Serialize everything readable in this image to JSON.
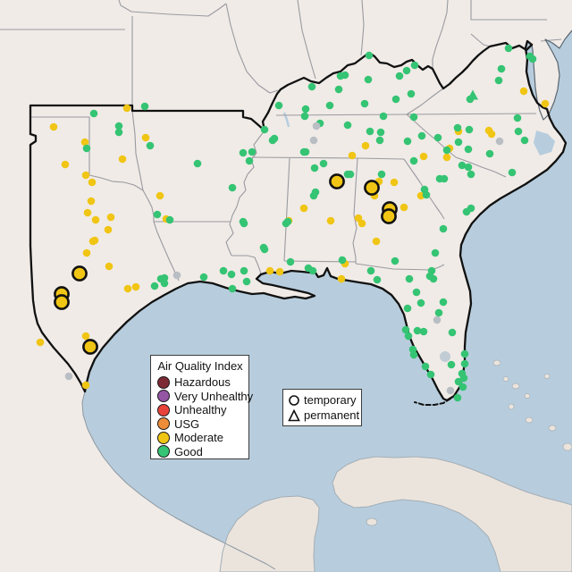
{
  "colors": {
    "water": "#b7cddd",
    "land": "#f0ebe7",
    "foreign_land": "#ebe4dd",
    "state_border": "#9a9aa0",
    "region_border": "#111111",
    "Hazardous": "#7e2a35",
    "Very Unhealthy": "#9455a5",
    "Unhealthy": "#e8433a",
    "USG": "#ed8d3a",
    "Moderate": "#f0c514",
    "Good": "#35c473",
    "NA": "#b9bec4"
  },
  "legend_aqi": {
    "title": "Air Quality Index",
    "items": [
      {
        "label": "Hazardous",
        "color": "#7e2a35"
      },
      {
        "label": "Very Unhealthy",
        "color": "#9455a5"
      },
      {
        "label": "Unhealthy",
        "color": "#e8433a"
      },
      {
        "label": "USG",
        "color": "#ed8d3a"
      },
      {
        "label": "Moderate",
        "color": "#f0c514"
      },
      {
        "label": "Good",
        "color": "#35c473"
      }
    ]
  },
  "legend_shape": {
    "items": [
      {
        "label": "temporary",
        "shape": "circle"
      },
      {
        "label": "permanent",
        "shape": "triangle"
      }
    ]
  },
  "map": {
    "stations_format": [
      "x",
      "y",
      "aqi",
      "marker"
    ],
    "stations": [
      [
        60,
        142,
        "Moderate",
        "dot"
      ],
      [
        95,
        159,
        "Moderate",
        "dot"
      ],
      [
        142,
        121,
        "Moderate",
        "dot"
      ],
      [
        163,
        154,
        "Moderate",
        "dot"
      ],
      [
        137,
        178,
        "Moderate",
        "dot"
      ],
      [
        73,
        184,
        "Moderate",
        "dot"
      ],
      [
        96,
        196,
        "Moderate",
        "dot"
      ],
      [
        103,
        204,
        "Moderate",
        "dot"
      ],
      [
        102,
        225,
        "Moderate",
        "dot"
      ],
      [
        98,
        238,
        "Moderate",
        "dot"
      ],
      [
        107,
        246,
        "Moderate",
        "dot"
      ],
      [
        124,
        243,
        "Moderate",
        "dot"
      ],
      [
        121,
        257,
        "Moderate",
        "dot"
      ],
      [
        106,
        269,
        "Moderate",
        "dot"
      ],
      [
        97,
        283,
        "Moderate",
        "dot"
      ],
      [
        104,
        270,
        "Moderate",
        "dot"
      ],
      [
        122,
        298,
        "Moderate",
        "dot"
      ],
      [
        143,
        323,
        "Moderate",
        "dot"
      ],
      [
        152,
        321,
        "Moderate",
        "dot"
      ],
      [
        45,
        383,
        "Moderate",
        "dot"
      ],
      [
        96,
        376,
        "Moderate",
        "dot"
      ],
      [
        96,
        431,
        "Moderate",
        "dot"
      ],
      [
        179,
        219,
        "Moderate",
        "dot"
      ],
      [
        186,
        245,
        "Moderate",
        "dot"
      ],
      [
        302,
        303,
        "Moderate",
        "dot"
      ],
      [
        313,
        304,
        "Moderate",
        "dot"
      ],
      [
        386,
        295,
        "Moderate",
        "dot"
      ],
      [
        382,
        312,
        "Moderate",
        "dot"
      ],
      [
        323,
        247,
        "Moderate",
        "dot"
      ],
      [
        370,
        247,
        "Moderate",
        "dot"
      ],
      [
        401,
        244,
        "Moderate",
        "dot"
      ],
      [
        405,
        250,
        "Moderate",
        "dot"
      ],
      [
        340,
        233,
        "Moderate",
        "dot"
      ],
      [
        394,
        174,
        "Moderate",
        "dot"
      ],
      [
        409,
        163,
        "Moderate",
        "dot"
      ],
      [
        424,
        203,
        "Moderate",
        "dot"
      ],
      [
        441,
        204,
        "Moderate",
        "dot"
      ],
      [
        419,
        219,
        "Moderate",
        "dot"
      ],
      [
        474,
        175,
        "Moderate",
        "dot"
      ],
      [
        452,
        232,
        "Moderate",
        "dot"
      ],
      [
        421,
        270,
        "Moderate",
        "dot"
      ],
      [
        471,
        219,
        "Moderate",
        "dot"
      ],
      [
        586,
        102,
        "Moderate",
        "dot"
      ],
      [
        610,
        116,
        "Moderate",
        "dot"
      ],
      [
        513,
        147,
        "Moderate",
        "dot"
      ],
      [
        503,
        166,
        "Moderate",
        "dot"
      ],
      [
        500,
        176,
        "Moderate",
        "dot"
      ],
      [
        547,
        146,
        "Moderate",
        "dot"
      ],
      [
        550,
        150,
        "Moderate",
        "dot"
      ],
      [
        105,
        127,
        "Good",
        "dot"
      ],
      [
        162,
        119,
        "Good",
        "dot"
      ],
      [
        133,
        141,
        "Good",
        "dot"
      ],
      [
        133,
        148,
        "Good",
        "dot"
      ],
      [
        97,
        166,
        "Good",
        "dot"
      ],
      [
        168,
        163,
        "Good",
        "dot"
      ],
      [
        173,
        320,
        "Good",
        "dot"
      ],
      [
        184,
        311,
        "Good",
        "dot"
      ],
      [
        184,
        317,
        "Good",
        "dot"
      ],
      [
        221,
        183,
        "Good",
        "dot"
      ],
      [
        260,
        210,
        "Good",
        "dot"
      ],
      [
        176,
        240,
        "Good",
        "dot"
      ],
      [
        272,
        171,
        "Good",
        "dot"
      ],
      [
        282,
        170,
        "Good",
        "dot"
      ],
      [
        279,
        180,
        "Good",
        "dot"
      ],
      [
        296,
        145,
        "Good",
        "dot"
      ],
      [
        307,
        155,
        "Good",
        "dot"
      ],
      [
        228,
        310,
        "Good",
        "dot"
      ],
      [
        250,
        303,
        "Good",
        "dot"
      ],
      [
        259,
        307,
        "Good",
        "dot"
      ],
      [
        273,
        303,
        "Good",
        "dot"
      ],
      [
        276,
        315,
        "Good",
        "dot"
      ],
      [
        260,
        323,
        "Good",
        "dot"
      ],
      [
        190,
        246,
        "Good",
        "dot"
      ],
      [
        273,
        250,
        "Good",
        "dot"
      ],
      [
        180,
        312,
        "Good",
        "dot"
      ],
      [
        295,
        277,
        "Good",
        "dot"
      ],
      [
        272,
        248,
        "Good",
        "dot"
      ],
      [
        296,
        279,
        "Good",
        "dot"
      ],
      [
        325,
        293,
        "Good",
        "dot"
      ],
      [
        320,
        250,
        "Good",
        "dot"
      ],
      [
        340,
        170,
        "Good",
        "dot"
      ],
      [
        345,
        300,
        "Good",
        "dot"
      ],
      [
        350,
        303,
        "Good",
        "dot"
      ],
      [
        413,
        62,
        "Good",
        "dot"
      ],
      [
        381,
        85,
        "Good",
        "dot"
      ],
      [
        386,
        84,
        "Good",
        "dot"
      ],
      [
        379,
        100,
        "Good",
        "dot"
      ],
      [
        349,
        97,
        "Good",
        "dot"
      ],
      [
        412,
        89,
        "Good",
        "dot"
      ],
      [
        447,
        85,
        "Good",
        "dot"
      ],
      [
        455,
        79,
        "Good",
        "dot"
      ],
      [
        464,
        73,
        "Good",
        "dot"
      ],
      [
        312,
        118,
        "Good",
        "dot"
      ],
      [
        342,
        122,
        "Good",
        "dot"
      ],
      [
        341,
        130,
        "Good",
        "dot"
      ],
      [
        369,
        118,
        "Good",
        "dot"
      ],
      [
        408,
        116,
        "Good",
        "dot"
      ],
      [
        443,
        111,
        "Good",
        "dot"
      ],
      [
        460,
        105,
        "Good",
        "dot"
      ],
      [
        429,
        130,
        "Good",
        "dot"
      ],
      [
        463,
        131,
        "Good",
        "dot"
      ],
      [
        305,
        157,
        "Good",
        "dot"
      ],
      [
        358,
        138,
        "Good",
        "dot"
      ],
      [
        389,
        140,
        "Good",
        "dot"
      ],
      [
        414,
        147,
        "Good",
        "dot"
      ],
      [
        426,
        148,
        "Good",
        "dot"
      ],
      [
        425,
        157,
        "Good",
        "dot"
      ],
      [
        456,
        158,
        "Good",
        "dot"
      ],
      [
        472,
        152,
        "Good",
        "dot"
      ],
      [
        342,
        170,
        "Good",
        "dot"
      ],
      [
        362,
        183,
        "Good",
        "dot"
      ],
      [
        352,
        188,
        "Good",
        "dot"
      ],
      [
        351,
        219,
        "Good",
        "dot"
      ],
      [
        353,
        215,
        "Good",
        "dot"
      ],
      [
        322,
        248,
        "Good",
        "dot"
      ],
      [
        389,
        195,
        "Good",
        "dot"
      ],
      [
        383,
        291,
        "Good",
        "dot"
      ],
      [
        427,
        195,
        "Good",
        "dot"
      ],
      [
        392,
        195,
        "Good",
        "dot"
      ],
      [
        463,
        180,
        "Good",
        "dot"
      ],
      [
        475,
        212,
        "Good",
        "dot"
      ],
      [
        477,
        218,
        "Good",
        "dot"
      ],
      [
        492,
        200,
        "Good",
        "dot"
      ],
      [
        497,
        200,
        "Good",
        "dot"
      ],
      [
        496,
        256,
        "Good",
        "dot"
      ],
      [
        487,
        283,
        "Good",
        "dot"
      ],
      [
        442,
        292,
        "Good",
        "dot"
      ],
      [
        517,
        185,
        "Good",
        "dot"
      ],
      [
        524,
        187,
        "Good",
        "dot"
      ],
      [
        527,
        195,
        "Good",
        "dot"
      ],
      [
        527,
        233,
        "Good",
        "dot"
      ],
      [
        522,
        237,
        "Good",
        "dot"
      ],
      [
        490,
        154,
        "Good",
        "dot"
      ],
      [
        512,
        143,
        "Good",
        "dot"
      ],
      [
        525,
        145,
        "Good",
        "dot"
      ],
      [
        513,
        159,
        "Good",
        "dot"
      ],
      [
        524,
        167,
        "Good",
        "dot"
      ],
      [
        548,
        172,
        "Good",
        "dot"
      ],
      [
        580,
        147,
        "Good",
        "dot"
      ],
      [
        587,
        157,
        "Good",
        "dot"
      ],
      [
        579,
        132,
        "Good",
        "dot"
      ],
      [
        573,
        193,
        "Good",
        "dot"
      ],
      [
        500,
        168,
        "Good",
        "dot"
      ],
      [
        569,
        54,
        "Good",
        "dot"
      ],
      [
        593,
        63,
        "Good",
        "dot"
      ],
      [
        596,
        66,
        "Good",
        "dot"
      ],
      [
        561,
        77,
        "Good",
        "dot"
      ],
      [
        558,
        90,
        "Good",
        "dot"
      ],
      [
        526,
        111,
        "Good",
        "dot"
      ],
      [
        415,
        303,
        "Good",
        "dot"
      ],
      [
        422,
        313,
        "Good",
        "dot"
      ],
      [
        458,
        312,
        "Good",
        "dot"
      ],
      [
        483,
        303,
        "Good",
        "dot"
      ],
      [
        481,
        309,
        "Good",
        "dot"
      ],
      [
        485,
        312,
        "Good",
        "dot"
      ],
      [
        466,
        327,
        "Good",
        "dot"
      ],
      [
        471,
        339,
        "Good",
        "dot"
      ],
      [
        496,
        338,
        "Good",
        "dot"
      ],
      [
        456,
        345,
        "Good",
        "dot"
      ],
      [
        491,
        350,
        "Good",
        "dot"
      ],
      [
        454,
        369,
        "Good",
        "dot"
      ],
      [
        467,
        370,
        "Good",
        "dot"
      ],
      [
        474,
        371,
        "Good",
        "dot"
      ],
      [
        457,
        376,
        "Good",
        "dot"
      ],
      [
        506,
        372,
        "Good",
        "dot"
      ],
      [
        462,
        391,
        "Good",
        "dot"
      ],
      [
        463,
        397,
        "Good",
        "dot"
      ],
      [
        520,
        396,
        "Good",
        "dot"
      ],
      [
        505,
        408,
        "Good",
        "dot"
      ],
      [
        520,
        407,
        "Good",
        "dot"
      ],
      [
        476,
        410,
        "Good",
        "dot"
      ],
      [
        482,
        419,
        "Good",
        "dot"
      ],
      [
        517,
        418,
        "Good",
        "dot"
      ],
      [
        519,
        423,
        "Good",
        "dot"
      ],
      [
        513,
        427,
        "Good",
        "dot"
      ],
      [
        518,
        433,
        "Good",
        "dot"
      ],
      [
        512,
        445,
        "Good",
        "dot"
      ],
      [
        198,
        308,
        "NA",
        "dot"
      ],
      [
        77,
        421,
        "NA",
        "dot"
      ],
      [
        354,
        141,
        "NA",
        "dot"
      ],
      [
        351,
        157,
        "NA",
        "dot"
      ],
      [
        559,
        158,
        "NA",
        "dot"
      ],
      [
        489,
        358,
        "NA",
        "dot"
      ],
      [
        504,
        437,
        "NA",
        "dot"
      ],
      [
        89,
        306,
        "Moderate",
        "circle-lg"
      ],
      [
        69,
        329,
        "Moderate",
        "circle-lg"
      ],
      [
        69,
        338,
        "Moderate",
        "circle-lg"
      ],
      [
        101,
        388,
        "Moderate",
        "circle-lg"
      ],
      [
        377,
        203,
        "Moderate",
        "circle-lg"
      ],
      [
        416,
        210,
        "Moderate",
        "circle-lg"
      ],
      [
        436,
        234,
        "Moderate",
        "circle-lg"
      ],
      [
        435,
        242,
        "Moderate",
        "circle-lg"
      ],
      [
        529,
        107,
        "Good",
        "triangle"
      ]
    ]
  }
}
